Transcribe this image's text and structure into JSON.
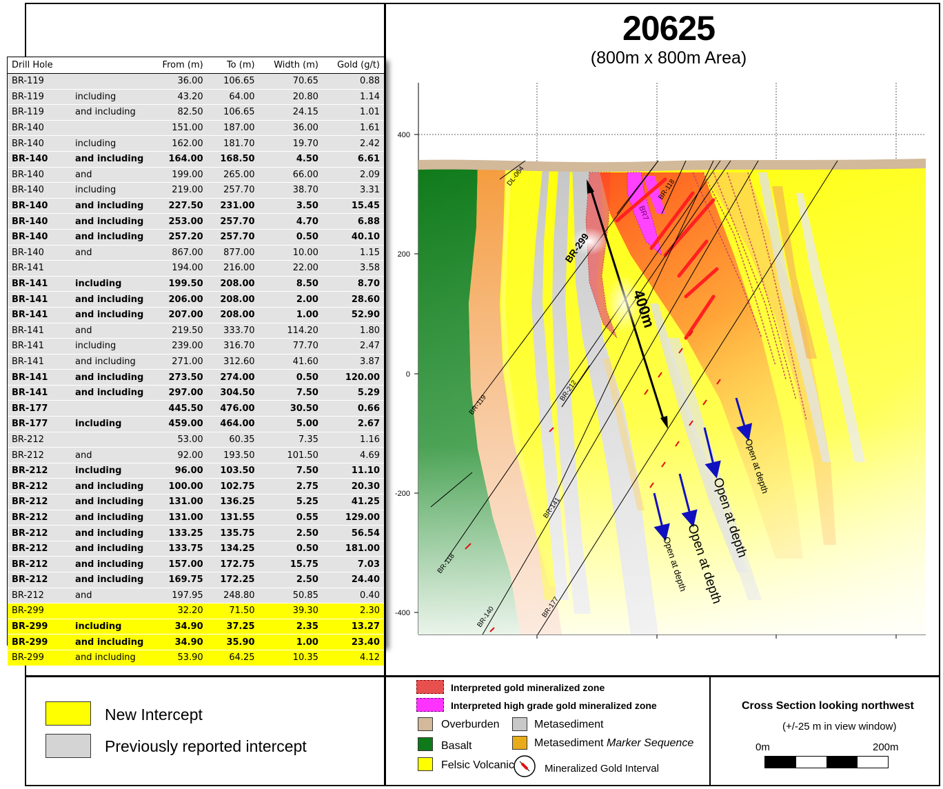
{
  "title": "20625",
  "subtitle": "(800m x 800m Area)",
  "table": {
    "headers": [
      "Drill Hole",
      "",
      "From (m)",
      "To (m)",
      "Width (m)",
      "Gold (g/t)"
    ],
    "rows": [
      {
        "hole": "BR-119",
        "note": "",
        "from": "36.00",
        "to": "106.65",
        "width": "70.65",
        "gold": "0.88",
        "bold": false,
        "status": "previous",
        "group_start": true
      },
      {
        "hole": "BR-119",
        "note": "including",
        "from": "43.20",
        "to": "64.00",
        "width": "20.80",
        "gold": "1.14",
        "bold": false,
        "status": "previous",
        "group_start": false
      },
      {
        "hole": "BR-119",
        "note": "and including",
        "from": "82.50",
        "to": "106.65",
        "width": "24.15",
        "gold": "1.01",
        "bold": false,
        "status": "previous",
        "group_start": false
      },
      {
        "hole": "BR-140",
        "note": "",
        "from": "151.00",
        "to": "187.00",
        "width": "36.00",
        "gold": "1.61",
        "bold": false,
        "status": "previous",
        "group_start": true
      },
      {
        "hole": "BR-140",
        "note": "including",
        "from": "162.00",
        "to": "181.70",
        "width": "19.70",
        "gold": "2.42",
        "bold": false,
        "status": "previous",
        "group_start": false
      },
      {
        "hole": "BR-140",
        "note": "and including",
        "from": "164.00",
        "to": "168.50",
        "width": "4.50",
        "gold": "6.61",
        "bold": true,
        "status": "previous",
        "group_start": false
      },
      {
        "hole": "BR-140",
        "note": "and",
        "from": "199.00",
        "to": "265.00",
        "width": "66.00",
        "gold": "2.09",
        "bold": false,
        "status": "previous",
        "group_start": false
      },
      {
        "hole": "BR-140",
        "note": "including",
        "from": "219.00",
        "to": "257.70",
        "width": "38.70",
        "gold": "3.31",
        "bold": false,
        "status": "previous",
        "group_start": false
      },
      {
        "hole": "BR-140",
        "note": "and including",
        "from": "227.50",
        "to": "231.00",
        "width": "3.50",
        "gold": "15.45",
        "bold": true,
        "status": "previous",
        "group_start": false
      },
      {
        "hole": "BR-140",
        "note": "and including",
        "from": "253.00",
        "to": "257.70",
        "width": "4.70",
        "gold": "6.88",
        "bold": true,
        "status": "previous",
        "group_start": false
      },
      {
        "hole": "BR-140",
        "note": "and including",
        "from": "257.20",
        "to": "257.70",
        "width": "0.50",
        "gold": "40.10",
        "bold": true,
        "status": "previous",
        "group_start": false
      },
      {
        "hole": "BR-140",
        "note": "and",
        "from": "867.00",
        "to": "877.00",
        "width": "10.00",
        "gold": "1.15",
        "bold": false,
        "status": "previous",
        "group_start": false
      },
      {
        "hole": "BR-141",
        "note": "",
        "from": "194.00",
        "to": "216.00",
        "width": "22.00",
        "gold": "3.58",
        "bold": false,
        "status": "previous",
        "group_start": true
      },
      {
        "hole": "BR-141",
        "note": "including",
        "from": "199.50",
        "to": "208.00",
        "width": "8.50",
        "gold": "8.70",
        "bold": true,
        "status": "previous",
        "group_start": false
      },
      {
        "hole": "BR-141",
        "note": "and including",
        "from": "206.00",
        "to": "208.00",
        "width": "2.00",
        "gold": "28.60",
        "bold": true,
        "status": "previous",
        "group_start": false
      },
      {
        "hole": "BR-141",
        "note": "and including",
        "from": "207.00",
        "to": "208.00",
        "width": "1.00",
        "gold": "52.90",
        "bold": true,
        "status": "previous",
        "group_start": false
      },
      {
        "hole": "BR-141",
        "note": "and",
        "from": "219.50",
        "to": "333.70",
        "width": "114.20",
        "gold": "1.80",
        "bold": false,
        "status": "previous",
        "group_start": false
      },
      {
        "hole": "BR-141",
        "note": "including",
        "from": "239.00",
        "to": "316.70",
        "width": "77.70",
        "gold": "2.47",
        "bold": false,
        "status": "previous",
        "group_start": false
      },
      {
        "hole": "BR-141",
        "note": "and including",
        "from": "271.00",
        "to": "312.60",
        "width": "41.60",
        "gold": "3.87",
        "bold": false,
        "status": "previous",
        "group_start": false
      },
      {
        "hole": "BR-141",
        "note": "and including",
        "from": "273.50",
        "to": "274.00",
        "width": "0.50",
        "gold": "120.00",
        "bold": true,
        "status": "previous",
        "group_start": false
      },
      {
        "hole": "BR-141",
        "note": "and including",
        "from": "297.00",
        "to": "304.50",
        "width": "7.50",
        "gold": "5.29",
        "bold": true,
        "status": "previous",
        "group_start": false
      },
      {
        "hole": "BR-177",
        "note": "",
        "from": "445.50",
        "to": "476.00",
        "width": "30.50",
        "gold": "0.66",
        "bold": true,
        "status": "previous",
        "group_start": true
      },
      {
        "hole": "BR-177",
        "note": "including",
        "from": "459.00",
        "to": "464.00",
        "width": "5.00",
        "gold": "2.67",
        "bold": true,
        "status": "previous",
        "group_start": false
      },
      {
        "hole": "BR-212",
        "note": "",
        "from": "53.00",
        "to": "60.35",
        "width": "7.35",
        "gold": "1.16",
        "bold": false,
        "status": "previous",
        "group_start": true
      },
      {
        "hole": "BR-212",
        "note": "and",
        "from": "92.00",
        "to": "193.50",
        "width": "101.50",
        "gold": "4.69",
        "bold": false,
        "status": "previous",
        "group_start": false
      },
      {
        "hole": "BR-212",
        "note": "including",
        "from": "96.00",
        "to": "103.50",
        "width": "7.50",
        "gold": "11.10",
        "bold": true,
        "status": "previous",
        "group_start": false
      },
      {
        "hole": "BR-212",
        "note": "and including",
        "from": "100.00",
        "to": "102.75",
        "width": "2.75",
        "gold": "20.30",
        "bold": true,
        "status": "previous",
        "group_start": false
      },
      {
        "hole": "BR-212",
        "note": "and including",
        "from": "131.00",
        "to": "136.25",
        "width": "5.25",
        "gold": "41.25",
        "bold": true,
        "status": "previous",
        "group_start": false
      },
      {
        "hole": "BR-212",
        "note": "and including",
        "from": "131.00",
        "to": "131.55",
        "width": "0.55",
        "gold": "129.00",
        "bold": true,
        "status": "previous",
        "group_start": false
      },
      {
        "hole": "BR-212",
        "note": "and including",
        "from": "133.25",
        "to": "135.75",
        "width": "2.50",
        "gold": "56.54",
        "bold": true,
        "status": "previous",
        "group_start": false
      },
      {
        "hole": "BR-212",
        "note": "and including",
        "from": "133.75",
        "to": "134.25",
        "width": "0.50",
        "gold": "181.00",
        "bold": true,
        "status": "previous",
        "group_start": false
      },
      {
        "hole": "BR-212",
        "note": "and including",
        "from": "157.00",
        "to": "172.75",
        "width": "15.75",
        "gold": "7.03",
        "bold": true,
        "status": "previous",
        "group_start": false
      },
      {
        "hole": "BR-212",
        "note": "and including",
        "from": "169.75",
        "to": "172.25",
        "width": "2.50",
        "gold": "24.40",
        "bold": true,
        "status": "previous",
        "group_start": false
      },
      {
        "hole": "BR-212",
        "note": "and",
        "from": "197.95",
        "to": "248.80",
        "width": "50.85",
        "gold": "0.40",
        "bold": false,
        "status": "previous",
        "group_start": false
      },
      {
        "hole": "BR-299",
        "note": "",
        "from": "32.20",
        "to": "71.50",
        "width": "39.30",
        "gold": "2.30",
        "bold": false,
        "status": "new",
        "group_start": true
      },
      {
        "hole": "BR-299",
        "note": "including",
        "from": "34.90",
        "to": "37.25",
        "width": "2.35",
        "gold": "13.27",
        "bold": true,
        "status": "new",
        "group_start": false
      },
      {
        "hole": "BR-299",
        "note": "and including",
        "from": "34.90",
        "to": "35.90",
        "width": "1.00",
        "gold": "23.40",
        "bold": true,
        "status": "new",
        "group_start": false
      },
      {
        "hole": "BR-299",
        "note": "and including",
        "from": "53.90",
        "to": "64.25",
        "width": "10.35",
        "gold": "4.12",
        "bold": false,
        "status": "new",
        "group_start": false
      }
    ]
  },
  "section": {
    "elevation_labels": [
      "400",
      "200",
      "0",
      "-200",
      "-400"
    ],
    "drill_labels": [
      "DL-064",
      "BR-118",
      "BR7",
      "BR-299",
      "BR-119",
      "BR-212",
      "BR-141",
      "BR-118",
      "BR-140",
      "BR-177"
    ],
    "distance_label": "400m",
    "open_at_depth": [
      "Open at depth",
      "Open at depth",
      "Open at depth",
      "Open at depth"
    ]
  },
  "legend_status": {
    "new": {
      "label": "New Intercept",
      "color": "#ffff00"
    },
    "previous": {
      "label": "Previously reported  intercept",
      "color": "#d4d4d4"
    }
  },
  "legend_rock": {
    "interp_zone": {
      "label": "Interpreted gold mineralized zone",
      "color": "#e8504e"
    },
    "interp_high": {
      "label": "Interpreted high grade gold mineralized zone",
      "color": "#ff33ff"
    },
    "overburden": {
      "label": "Overburden",
      "color": "#d2b99a"
    },
    "metasediment": {
      "label": "Metasediment",
      "color": "#c8c8c8"
    },
    "basalt": {
      "label": "Basalt",
      "color": "#0f7a1a"
    },
    "marker": {
      "label_prefix": "Metasediment ",
      "label_italic": "Marker Sequence",
      "color": "#e8ac1a"
    },
    "felsic": {
      "label": "Felsic Volcanic",
      "color": "#ffff00"
    },
    "mineralized": {
      "label": "Mineralized Gold Interval"
    }
  },
  "scale": {
    "caption": "Cross Section looking northwest",
    "window": "(+/-25 m in view window)",
    "start": "0m",
    "end": "200m"
  }
}
